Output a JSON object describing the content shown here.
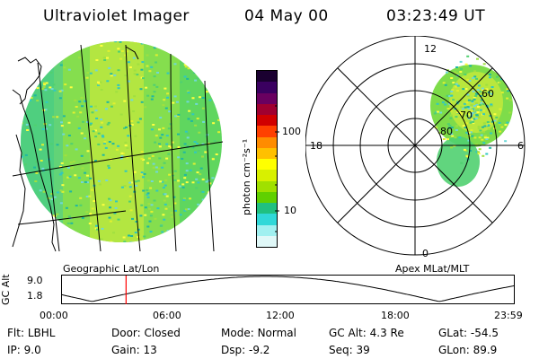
{
  "header": {
    "instrument": "Ultraviolet Imager",
    "date": "04 May 00",
    "time": "03:23:49 UT"
  },
  "left_panel": {
    "caption": "Geographic Lat/Lon"
  },
  "right_panel": {
    "caption": "Apex MLat/MLT",
    "mlt_labels": {
      "top": "12",
      "left": "18",
      "right": "6",
      "bottom": "0"
    },
    "lat_labels": [
      "60",
      "70",
      "80"
    ]
  },
  "colorbar": {
    "label": "photon cm⁻²s⁻¹",
    "ticks": [
      "100",
      "10"
    ],
    "colors": [
      "#1a0030",
      "#3a0060",
      "#6a0060",
      "#a00030",
      "#d00000",
      "#ff4000",
      "#ff8c00",
      "#ffc000",
      "#ffff00",
      "#d8f000",
      "#a0e000",
      "#60d000",
      "#20c080",
      "#30d8d8",
      "#a0f0f0",
      "#e0f8f8"
    ]
  },
  "altitude_plot": {
    "ylabel": "GC Alt",
    "yticks": [
      "9.0",
      "1.8"
    ],
    "xticks": [
      "00:00",
      "06:00",
      "12:00",
      "18:00",
      "23:59"
    ],
    "current_hour": 3.397,
    "cursor_color": "#ff0000"
  },
  "info": {
    "row1": [
      {
        "label": "Flt:",
        "value": "LBHL"
      },
      {
        "label": "Door:",
        "value": "Closed"
      },
      {
        "label": "Mode:",
        "value": "Normal"
      },
      {
        "label": "GC Alt:",
        "value": "4.3 Re"
      },
      {
        "label": "GLat:",
        "value": "-54.5"
      }
    ],
    "row2": [
      {
        "label": "IP:",
        "value": "9.0"
      },
      {
        "label": "Gain:",
        "value": "13"
      },
      {
        "label": "Dsp:",
        "value": "-9.2"
      },
      {
        "label": "Seq:",
        "value": "39"
      },
      {
        "label": "GLon:",
        "value": "89.9"
      }
    ]
  }
}
